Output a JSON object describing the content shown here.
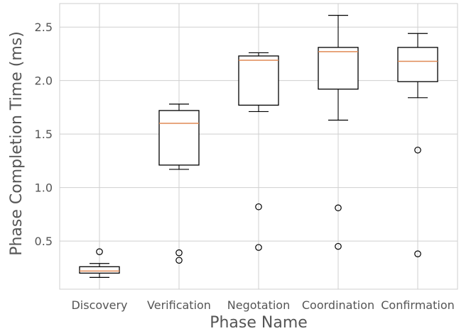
{
  "chart_data": {
    "type": "boxplot",
    "xlabel": "Phase Name",
    "ylabel": "Phase Completion Time (ms)",
    "ylim": [
      0.05,
      2.72
    ],
    "yticks": [
      0.5,
      1.0,
      1.5,
      2.0,
      2.5
    ],
    "ytick_labels": [
      "0.5",
      "1.0",
      "1.5",
      "2.0",
      "2.5"
    ],
    "grid": true,
    "colors": {
      "box": "#000000",
      "median": "#e08a55",
      "grid": "#cfcfcf",
      "text": "#555555"
    },
    "categories": [
      "Discovery",
      "Verification",
      "Negotation",
      "Coordination",
      "Confirmation"
    ],
    "boxes": [
      {
        "whisker_low": 0.16,
        "q1": 0.2,
        "median": 0.22,
        "q3": 0.26,
        "whisker_high": 0.29,
        "outliers": [
          0.4
        ]
      },
      {
        "whisker_low": 1.17,
        "q1": 1.21,
        "median": 1.6,
        "q3": 1.72,
        "whisker_high": 1.78,
        "outliers": [
          0.39,
          0.32
        ]
      },
      {
        "whisker_low": 1.71,
        "q1": 1.77,
        "median": 2.19,
        "q3": 2.23,
        "whisker_high": 2.26,
        "outliers": [
          0.82,
          0.44
        ]
      },
      {
        "whisker_low": 1.63,
        "q1": 1.92,
        "median": 2.27,
        "q3": 2.31,
        "whisker_high": 2.61,
        "outliers": [
          0.81,
          0.45
        ]
      },
      {
        "whisker_low": 1.84,
        "q1": 1.99,
        "median": 2.18,
        "q3": 2.31,
        "whisker_high": 2.44,
        "outliers": [
          1.35,
          0.38
        ]
      }
    ]
  }
}
